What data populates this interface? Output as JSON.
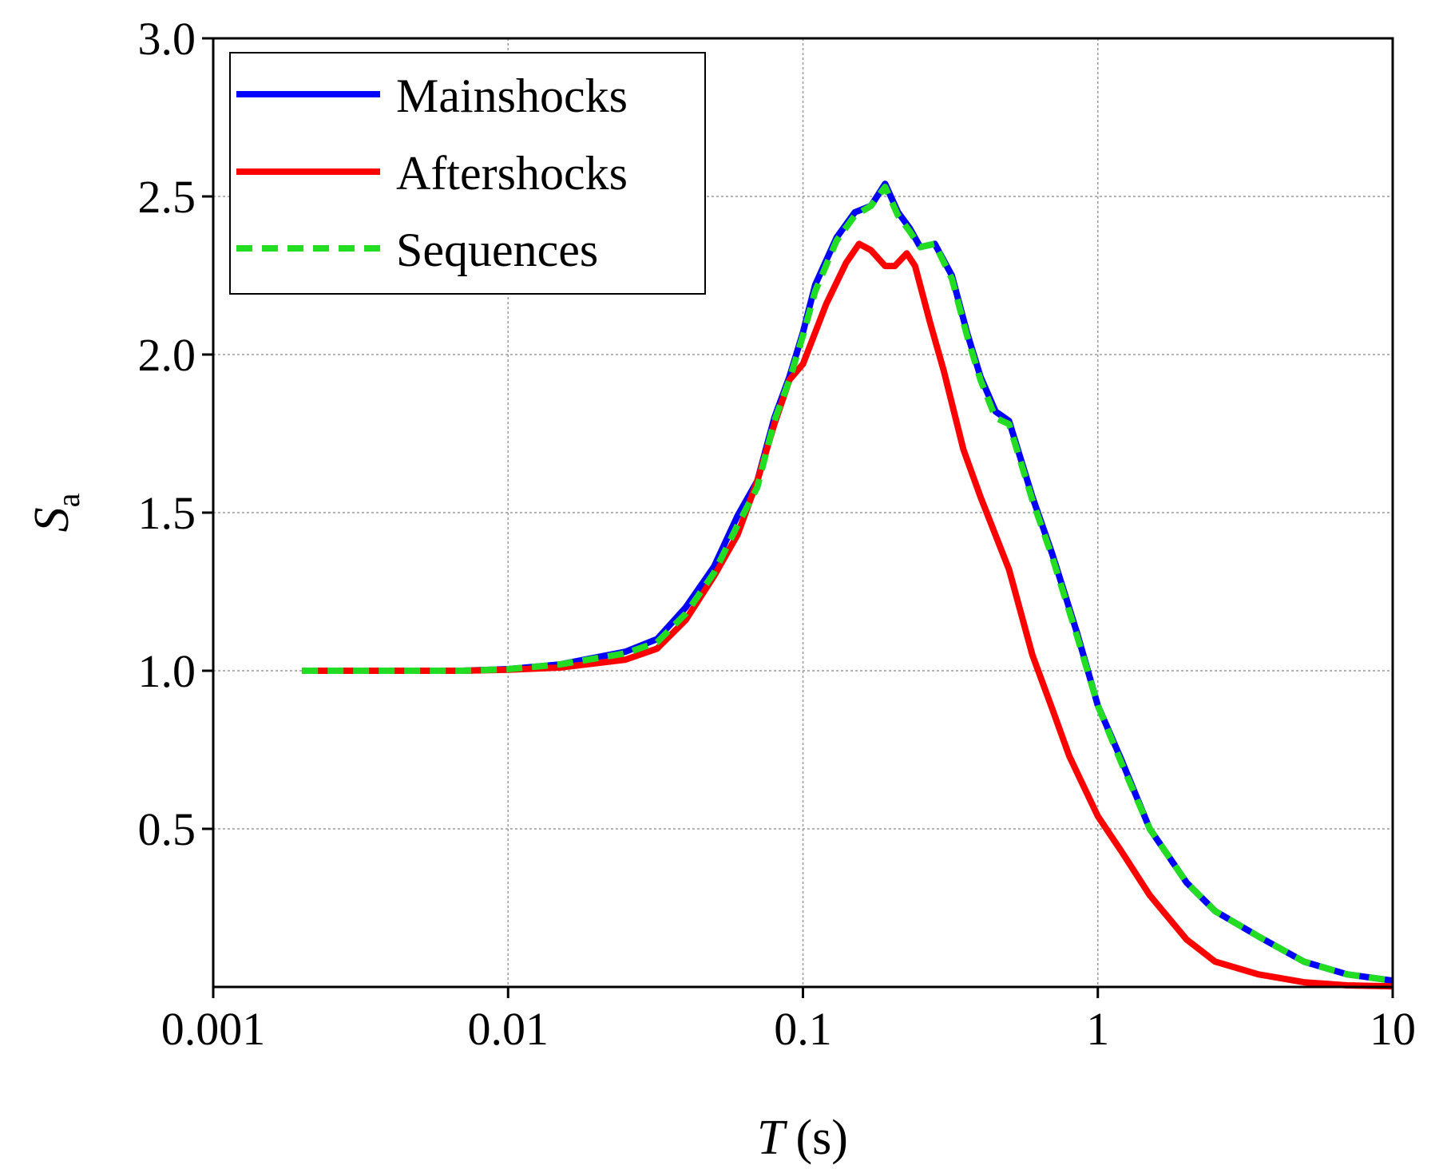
{
  "chart_data": {
    "type": "line",
    "title": "",
    "xlabel": "T",
    "xlabel_unit": "(s)",
    "ylabel_main": "S",
    "ylabel_sub": "a",
    "x_scale": "log",
    "xlim": [
      0.001,
      10
    ],
    "ylim": [
      0,
      3.0
    ],
    "x_ticks": [
      0.001,
      0.01,
      0.1,
      1,
      10
    ],
    "x_tick_labels": [
      "0.001",
      "0.01",
      "0.1",
      "1",
      "10"
    ],
    "y_ticks": [
      0.5,
      1.0,
      1.5,
      2.0,
      2.5,
      3.0
    ],
    "y_tick_labels": [
      "0.5",
      "1.0",
      "1.5",
      "2.0",
      "2.5",
      "3.0"
    ],
    "grid": true,
    "legend_position": "top-left",
    "series": [
      {
        "name": "Mainshocks",
        "color": "#0000ff",
        "style": "solid",
        "x": [
          0.002,
          0.004,
          0.007,
          0.01,
          0.015,
          0.025,
          0.032,
          0.04,
          0.05,
          0.06,
          0.07,
          0.08,
          0.09,
          0.1,
          0.11,
          0.13,
          0.15,
          0.17,
          0.19,
          0.21,
          0.23,
          0.25,
          0.28,
          0.32,
          0.36,
          0.4,
          0.45,
          0.5,
          0.6,
          0.7,
          0.85,
          1.0,
          1.2,
          1.5,
          2.0,
          2.5,
          3.5,
          5.0,
          7.0,
          10.0
        ],
        "values": [
          1.0,
          1.0,
          1.0,
          1.005,
          1.02,
          1.06,
          1.1,
          1.2,
          1.33,
          1.49,
          1.6,
          1.8,
          1.93,
          2.07,
          2.22,
          2.37,
          2.45,
          2.47,
          2.54,
          2.45,
          2.4,
          2.34,
          2.35,
          2.25,
          2.07,
          1.93,
          1.82,
          1.79,
          1.55,
          1.37,
          1.12,
          0.89,
          0.72,
          0.5,
          0.33,
          0.24,
          0.16,
          0.08,
          0.04,
          0.02
        ]
      },
      {
        "name": "Aftershocks",
        "color": "#ff0000",
        "style": "solid",
        "x": [
          0.002,
          0.004,
          0.007,
          0.01,
          0.015,
          0.025,
          0.032,
          0.04,
          0.05,
          0.06,
          0.07,
          0.08,
          0.09,
          0.1,
          0.12,
          0.14,
          0.155,
          0.17,
          0.19,
          0.205,
          0.225,
          0.24,
          0.27,
          0.3,
          0.35,
          0.4,
          0.5,
          0.6,
          0.7,
          0.8,
          1.0,
          1.2,
          1.5,
          2.0,
          2.5,
          3.5,
          5.0,
          7.0,
          10.0
        ],
        "values": [
          1.0,
          1.0,
          1.0,
          1.003,
          1.01,
          1.035,
          1.07,
          1.16,
          1.3,
          1.43,
          1.6,
          1.78,
          1.92,
          1.97,
          2.16,
          2.29,
          2.35,
          2.33,
          2.28,
          2.28,
          2.32,
          2.28,
          2.1,
          1.95,
          1.7,
          1.55,
          1.32,
          1.05,
          0.88,
          0.73,
          0.54,
          0.43,
          0.29,
          0.15,
          0.08,
          0.04,
          0.015,
          0.005,
          0.002
        ]
      },
      {
        "name": "Sequences",
        "color": "#22dd22",
        "style": "dashed",
        "x": [
          0.002,
          0.004,
          0.007,
          0.01,
          0.015,
          0.025,
          0.032,
          0.04,
          0.05,
          0.06,
          0.07,
          0.08,
          0.09,
          0.1,
          0.11,
          0.13,
          0.15,
          0.17,
          0.19,
          0.21,
          0.23,
          0.25,
          0.28,
          0.32,
          0.36,
          0.4,
          0.45,
          0.5,
          0.6,
          0.7,
          0.85,
          1.0,
          1.2,
          1.5,
          2.0,
          2.5,
          3.5,
          5.0,
          7.0,
          10.0
        ],
        "values": [
          1.0,
          1.0,
          1.0,
          1.005,
          1.02,
          1.055,
          1.09,
          1.18,
          1.31,
          1.46,
          1.58,
          1.79,
          1.92,
          2.06,
          2.2,
          2.36,
          2.44,
          2.47,
          2.53,
          2.44,
          2.39,
          2.34,
          2.35,
          2.24,
          2.06,
          1.92,
          1.8,
          1.78,
          1.54,
          1.36,
          1.11,
          0.89,
          0.71,
          0.5,
          0.33,
          0.24,
          0.16,
          0.08,
          0.04,
          0.02
        ]
      }
    ]
  }
}
